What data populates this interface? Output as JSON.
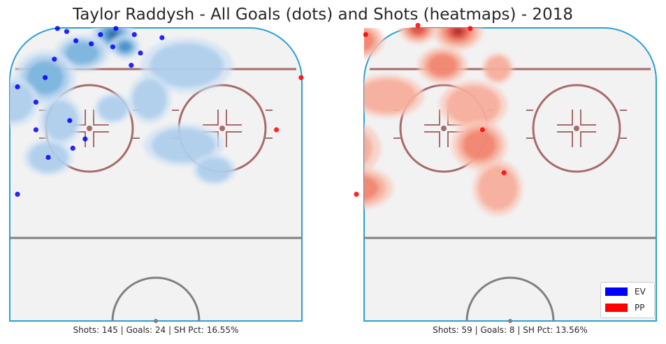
{
  "chart_data": {
    "type": "scatter",
    "title": "Taylor Raddysh - All Goals (dots) and Shots (heatmaps) - 2018",
    "panels": [
      {
        "name": "EV",
        "color": "#0000ff",
        "heat_color": "blue",
        "caption": "Shots: 145 | Goals: 24 | SH Pct: 16.55%",
        "goals": [
          [
            -32,
            68
          ],
          [
            -29,
            67
          ],
          [
            -33,
            58
          ],
          [
            -26,
            64
          ],
          [
            -21,
            63
          ],
          [
            -18,
            66
          ],
          [
            -13,
            68
          ],
          [
            -14,
            62
          ],
          [
            -7,
            66
          ],
          [
            -8,
            56
          ],
          [
            -5,
            60
          ],
          [
            2,
            65
          ],
          [
            -36,
            52
          ],
          [
            -39,
            44
          ],
          [
            -39,
            35
          ],
          [
            -45,
            49
          ],
          [
            -28,
            38
          ],
          [
            -27,
            29
          ],
          [
            -23,
            32
          ],
          [
            -35,
            26
          ],
          [
            -53,
            31
          ],
          [
            -61,
            33
          ],
          [
            -45,
            14
          ],
          [
            -89,
            -24
          ]
        ],
        "heat": [
          [
            -14,
            66,
            7,
            6,
            1.0
          ],
          [
            -10,
            62,
            5,
            4,
            0.8
          ],
          [
            -24,
            60,
            9,
            6,
            0.6
          ],
          [
            -36,
            52,
            10,
            9,
            0.5
          ],
          [
            -31,
            38,
            7,
            8,
            0.45
          ],
          [
            -35,
            26,
            8,
            6,
            0.35
          ],
          [
            -47,
            44,
            9,
            8,
            0.4
          ],
          [
            10,
            56,
            15,
            9,
            0.45
          ],
          [
            -2,
            45,
            7,
            8,
            0.35
          ],
          [
            9,
            30,
            13,
            7,
            0.4
          ],
          [
            19,
            22,
            7,
            5,
            0.35
          ],
          [
            -14,
            42,
            6,
            5,
            0.3
          ]
        ]
      },
      {
        "name": "PP",
        "color": "#ff0000",
        "heat_color": "red",
        "caption": "Shots: 59 | Goals: 8 | SH Pct: 13.56%",
        "goals": [
          [
            -47,
            66
          ],
          [
            -30,
            69
          ],
          [
            -13,
            68
          ],
          [
            -68,
            52
          ],
          [
            -76,
            35
          ],
          [
            -50,
            14
          ],
          [
            -9,
            35
          ],
          [
            -2,
            21
          ]
        ],
        "heat": [
          [
            -17,
            67,
            8,
            6,
            1.0
          ],
          [
            -30,
            68,
            6,
            5,
            0.7
          ],
          [
            -49,
            64,
            8,
            6,
            0.6
          ],
          [
            -22,
            56,
            8,
            6,
            0.55
          ],
          [
            -62,
            50,
            14,
            11,
            0.55
          ],
          [
            -74,
            36,
            9,
            9,
            0.5
          ],
          [
            -56,
            29,
            14,
            10,
            0.55
          ],
          [
            -50,
            16,
            12,
            7,
            0.5
          ],
          [
            -12,
            43,
            11,
            8,
            0.45
          ],
          [
            -10,
            30,
            9,
            8,
            0.5
          ],
          [
            -4,
            16,
            8,
            9,
            0.45
          ],
          [
            -86,
            -12,
            5,
            6,
            0.35
          ],
          [
            -40,
            46,
            12,
            7,
            0.35
          ],
          [
            -4,
            55,
            5,
            5,
            0.35
          ]
        ]
      }
    ],
    "legend": {
      "position": "lower-right",
      "entries": [
        {
          "label": "EV",
          "color": "#0000ff"
        },
        {
          "label": "PP",
          "color": "#ff0000"
        }
      ]
    },
    "grid": false
  }
}
